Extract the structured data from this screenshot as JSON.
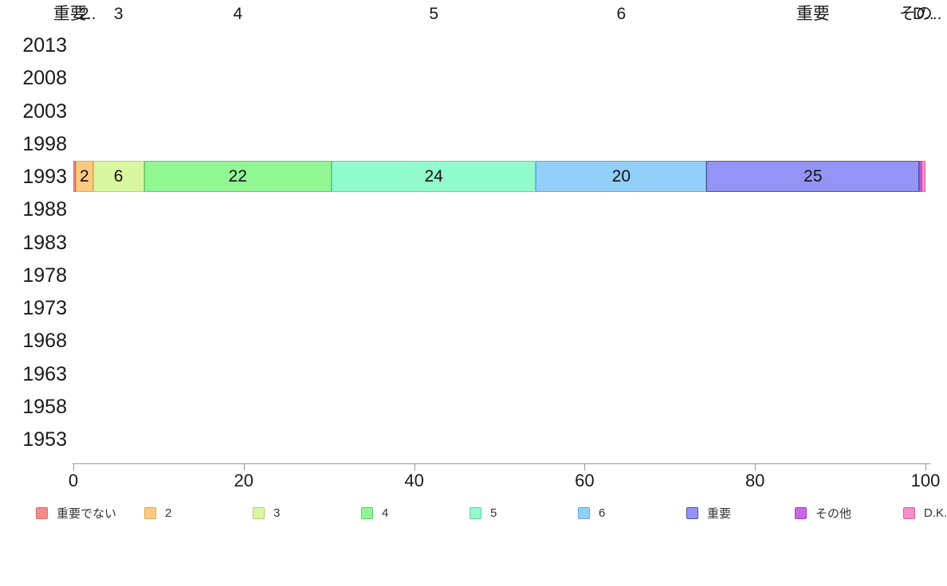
{
  "chart_data": {
    "type": "bar",
    "orientation": "horizontal",
    "stacked": true,
    "title": "",
    "xlabel": "",
    "ylabel": "",
    "xlim": [
      0,
      100
    ],
    "x_ticks": [
      "0",
      "20",
      "40",
      "60",
      "80",
      "100"
    ],
    "grid": false,
    "legend_position": "bottom",
    "axis_color": "#999999",
    "y_categories": [
      "2013",
      "2008",
      "2003",
      "1998",
      "1993",
      "1988",
      "1983",
      "1978",
      "1973",
      "1968",
      "1963",
      "1958",
      "1953"
    ],
    "bar_category": "1993",
    "series": [
      {
        "name": "重要でない",
        "value": 0.3,
        "bar_label": "",
        "top_label": "重要..",
        "fill": "#F28C8C",
        "border": "#D96A6A"
      },
      {
        "name": "2",
        "value": 2,
        "bar_label": "2",
        "top_label": "2",
        "fill": "#FBCA80",
        "border": "#E0A653"
      },
      {
        "name": "3",
        "value": 6,
        "bar_label": "6",
        "top_label": "3",
        "fill": "#D9F79E",
        "border": "#AFD36A"
      },
      {
        "name": "4",
        "value": 22,
        "bar_label": "22",
        "top_label": "4",
        "fill": "#90F792",
        "border": "#5FC968"
      },
      {
        "name": "5",
        "value": 24,
        "bar_label": "24",
        "top_label": "5",
        "fill": "#92FBCB",
        "border": "#5ED4A4"
      },
      {
        "name": "6",
        "value": 20,
        "bar_label": "20",
        "top_label": "6",
        "fill": "#92CFF9",
        "border": "#5FA8DC"
      },
      {
        "name": "重要",
        "value": 25,
        "bar_label": "25",
        "top_label": "重要",
        "fill": "#9394F5",
        "border": "#5151A3"
      },
      {
        "name": "その他",
        "value": 0.2,
        "bar_label": "",
        "top_label": "その..",
        "fill": "#CC66E8",
        "border": "#9B3FBF"
      },
      {
        "name": "D.K.",
        "value": 0.5,
        "bar_label": "",
        "top_label": "D..",
        "fill": "#F98DCB",
        "border": "#DB5FA5"
      }
    ]
  }
}
